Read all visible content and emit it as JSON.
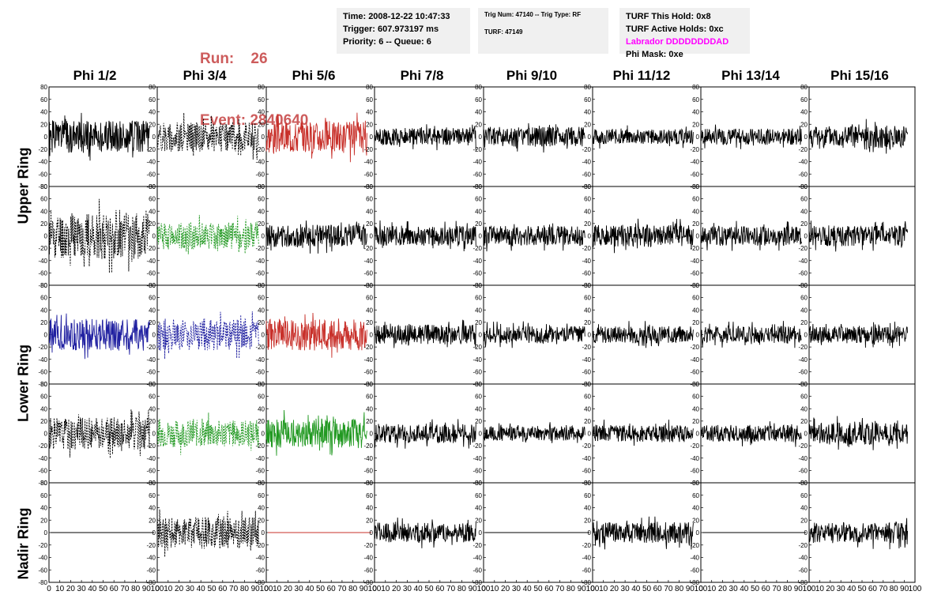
{
  "header": {
    "run_label": "Run:",
    "run_value": "26",
    "event_label": "Event:",
    "event_value": "2840640",
    "time_line": "Time: 2008-12-22 10:47:33",
    "trigger_line": "Trigger: 607.973197 ms",
    "priority_line": "Priority: 6 -- Queue: 6",
    "trig_num_line": "Trig Num: 47140 -- Trig Type: RF",
    "turf_line": "TURF: 47149",
    "turf_this_hold": "TURF This Hold: 0x8",
    "turf_active_holds": "TURF Active Holds: 0xc",
    "labrador": "Labrador DDDDDDDDAD",
    "phi_mask": "Phi Mask: 0xe",
    "labrador_color": "#ff00ff",
    "run_color": "#cd5c5c"
  },
  "columns": [
    "Phi 1/2",
    "Phi 3/4",
    "Phi 5/6",
    "Phi 7/8",
    "Phi 9/10",
    "Phi 11/12",
    "Phi 13/14",
    "Phi 15/16"
  ],
  "ring_labels": {
    "upper": "Upper Ring",
    "lower": "Lower Ring",
    "nadir": "Nadir Ring"
  },
  "chart_data": {
    "type": "line",
    "description_grid": "5 rows x 8 columns of waveform panels",
    "xlim": [
      0,
      100
    ],
    "ylim": [
      -80,
      80
    ],
    "y_ticks": [
      -80,
      -60,
      -40,
      -20,
      0,
      20,
      40,
      60,
      80
    ],
    "x_tick_labels": [
      "0",
      "10",
      "20",
      "30",
      "40",
      "50",
      "60",
      "70",
      "80",
      "90",
      "100"
    ],
    "grid": false,
    "colors": {
      "black": "#000000",
      "red": "#c8302a",
      "green": "#229922",
      "blue": "#1f1fa0"
    },
    "panels": [
      [
        {
          "color": "black",
          "dash": false,
          "amp": 26,
          "seed": 1,
          "flat": false
        },
        {
          "color": "black",
          "dash": true,
          "amp": 24,
          "seed": 2,
          "flat": false
        },
        {
          "color": "red",
          "dash": false,
          "amp": 26,
          "seed": 3,
          "flat": false
        },
        {
          "color": "black",
          "dash": false,
          "amp": 14,
          "seed": 4,
          "flat": false
        },
        {
          "color": "black",
          "dash": false,
          "amp": 16,
          "seed": 5,
          "flat": false
        },
        {
          "color": "black",
          "dash": false,
          "amp": 12,
          "seed": 6,
          "flat": false
        },
        {
          "color": "black",
          "dash": false,
          "amp": 13,
          "seed": 7,
          "flat": false
        },
        {
          "color": "black",
          "dash": false,
          "amp": 18,
          "seed": 8,
          "flat": false
        }
      ],
      [
        {
          "color": "black",
          "dash": true,
          "amp": 38,
          "seed": 11,
          "flat": false
        },
        {
          "color": "green",
          "dash": true,
          "amp": 22,
          "seed": 12,
          "flat": false
        },
        {
          "color": "black",
          "dash": false,
          "amp": 18,
          "seed": 13,
          "flat": false
        },
        {
          "color": "black",
          "dash": false,
          "amp": 16,
          "seed": 14,
          "flat": false
        },
        {
          "color": "black",
          "dash": false,
          "amp": 16,
          "seed": 15,
          "flat": false
        },
        {
          "color": "black",
          "dash": false,
          "amp": 18,
          "seed": 16,
          "flat": false
        },
        {
          "color": "black",
          "dash": false,
          "amp": 16,
          "seed": 17,
          "flat": false
        },
        {
          "color": "black",
          "dash": false,
          "amp": 17,
          "seed": 18,
          "flat": false
        }
      ],
      [
        {
          "color": "blue",
          "dash": false,
          "amp": 26,
          "seed": 21,
          "flat": false
        },
        {
          "color": "blue",
          "dash": true,
          "amp": 26,
          "seed": 22,
          "flat": false
        },
        {
          "color": "red",
          "dash": false,
          "amp": 26,
          "seed": 23,
          "flat": false
        },
        {
          "color": "black",
          "dash": false,
          "amp": 16,
          "seed": 24,
          "flat": false
        },
        {
          "color": "black",
          "dash": false,
          "amp": 14,
          "seed": 25,
          "flat": false
        },
        {
          "color": "black",
          "dash": false,
          "amp": 14,
          "seed": 26,
          "flat": false
        },
        {
          "color": "black",
          "dash": false,
          "amp": 14,
          "seed": 27,
          "flat": false
        },
        {
          "color": "black",
          "dash": false,
          "amp": 14,
          "seed": 28,
          "flat": false
        }
      ],
      [
        {
          "color": "black",
          "dash": true,
          "amp": 26,
          "seed": 31,
          "flat": false
        },
        {
          "color": "green",
          "dash": true,
          "amp": 22,
          "seed": 32,
          "flat": false
        },
        {
          "color": "green",
          "dash": false,
          "amp": 24,
          "seed": 33,
          "flat": false
        },
        {
          "color": "black",
          "dash": false,
          "amp": 16,
          "seed": 34,
          "flat": false
        },
        {
          "color": "black",
          "dash": false,
          "amp": 12,
          "seed": 35,
          "flat": false
        },
        {
          "color": "black",
          "dash": false,
          "amp": 14,
          "seed": 36,
          "flat": false
        },
        {
          "color": "black",
          "dash": false,
          "amp": 14,
          "seed": 37,
          "flat": false
        },
        {
          "color": "black",
          "dash": false,
          "amp": 18,
          "seed": 38,
          "flat": false
        }
      ],
      [
        {
          "color": "black",
          "dash": false,
          "amp": 0,
          "seed": 41,
          "flat": true
        },
        {
          "color": "black",
          "dash": true,
          "amp": 26,
          "seed": 42,
          "flat": false
        },
        {
          "color": "red",
          "dash": false,
          "amp": 0,
          "seed": 43,
          "flat": true
        },
        {
          "color": "black",
          "dash": false,
          "amp": 16,
          "seed": 44,
          "flat": false
        },
        {
          "color": "black",
          "dash": false,
          "amp": 0,
          "seed": 45,
          "flat": true
        },
        {
          "color": "black",
          "dash": false,
          "amp": 17,
          "seed": 46,
          "flat": false
        },
        {
          "color": "black",
          "dash": false,
          "amp": 0,
          "seed": 47,
          "flat": true
        },
        {
          "color": "black",
          "dash": false,
          "amp": 17,
          "seed": 48,
          "flat": false
        }
      ]
    ]
  }
}
